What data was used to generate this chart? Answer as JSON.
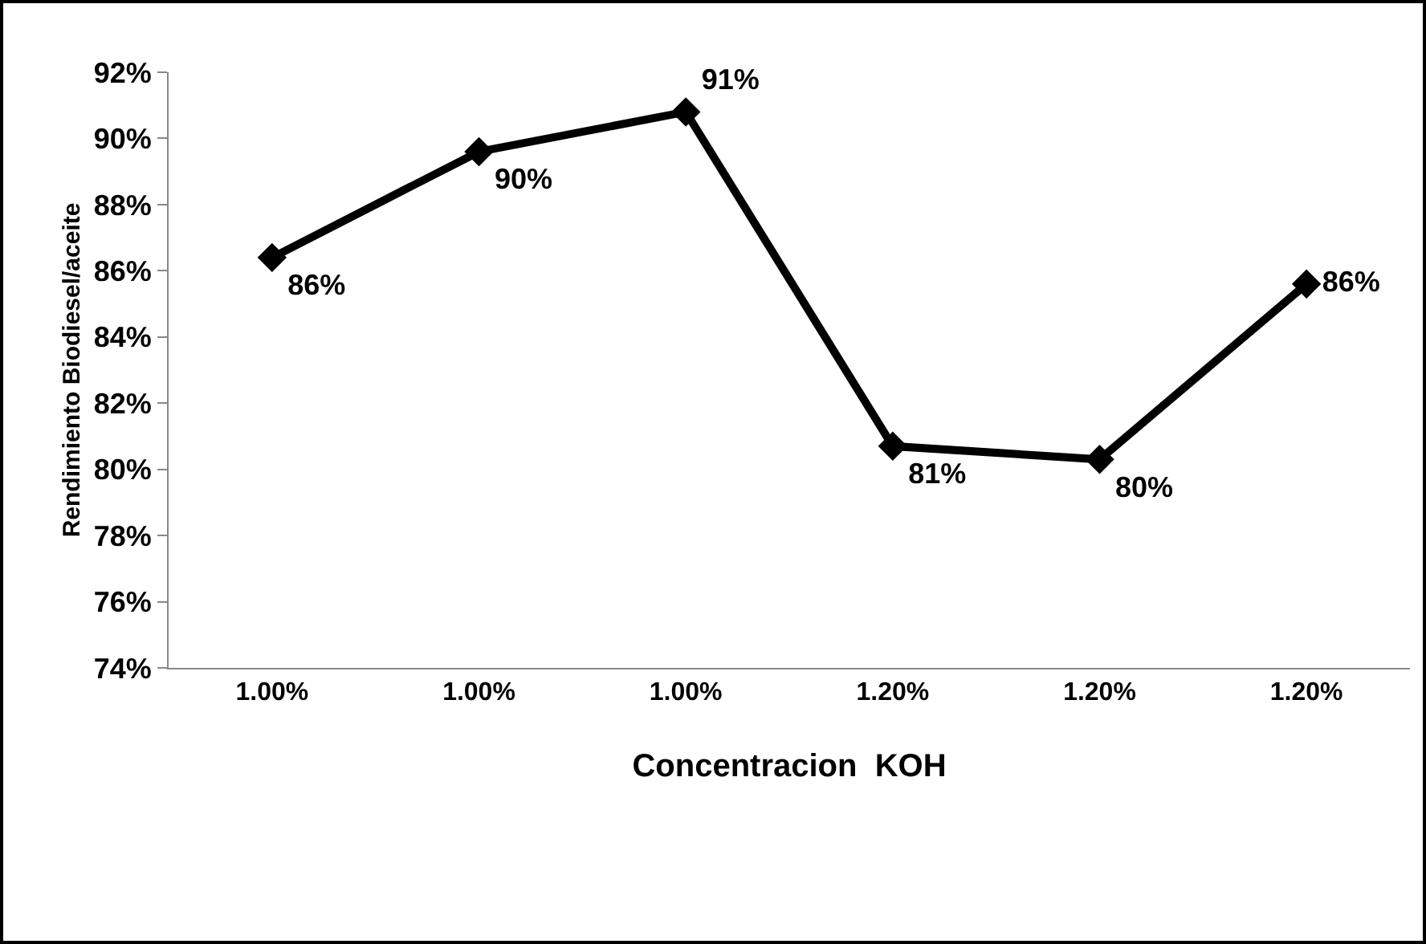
{
  "chart_data": {
    "type": "line",
    "xlabel": "Concentracion  KOH",
    "ylabel": "Rendimiento Biodiesel/aceite",
    "categories": [
      "1.00%",
      "1.00%",
      "1.00%",
      "1.20%",
      "1.20%",
      "1.20%"
    ],
    "series": [
      {
        "color": "#000000",
        "values": [
          86.4,
          89.6,
          90.8,
          80.7,
          80.3,
          85.6
        ],
        "value_labels": [
          "86%",
          "90%",
          "91%",
          "81%",
          "80%",
          "86%"
        ]
      }
    ],
    "ylim": [
      74,
      92
    ],
    "yticks": [
      {
        "value": 74,
        "label": "74%"
      },
      {
        "value": 76,
        "label": "76%"
      },
      {
        "value": 78,
        "label": "78%"
      },
      {
        "value": 80,
        "label": "80%"
      },
      {
        "value": 82,
        "label": "82%"
      },
      {
        "value": 84,
        "label": "84%"
      },
      {
        "value": 86,
        "label": "86%"
      },
      {
        "value": 88,
        "label": "88%"
      },
      {
        "value": 90,
        "label": "90%"
      },
      {
        "value": 92,
        "label": "92%"
      }
    ],
    "grid": false,
    "legend": false,
    "marker": "diamond",
    "line_style": "solid"
  }
}
